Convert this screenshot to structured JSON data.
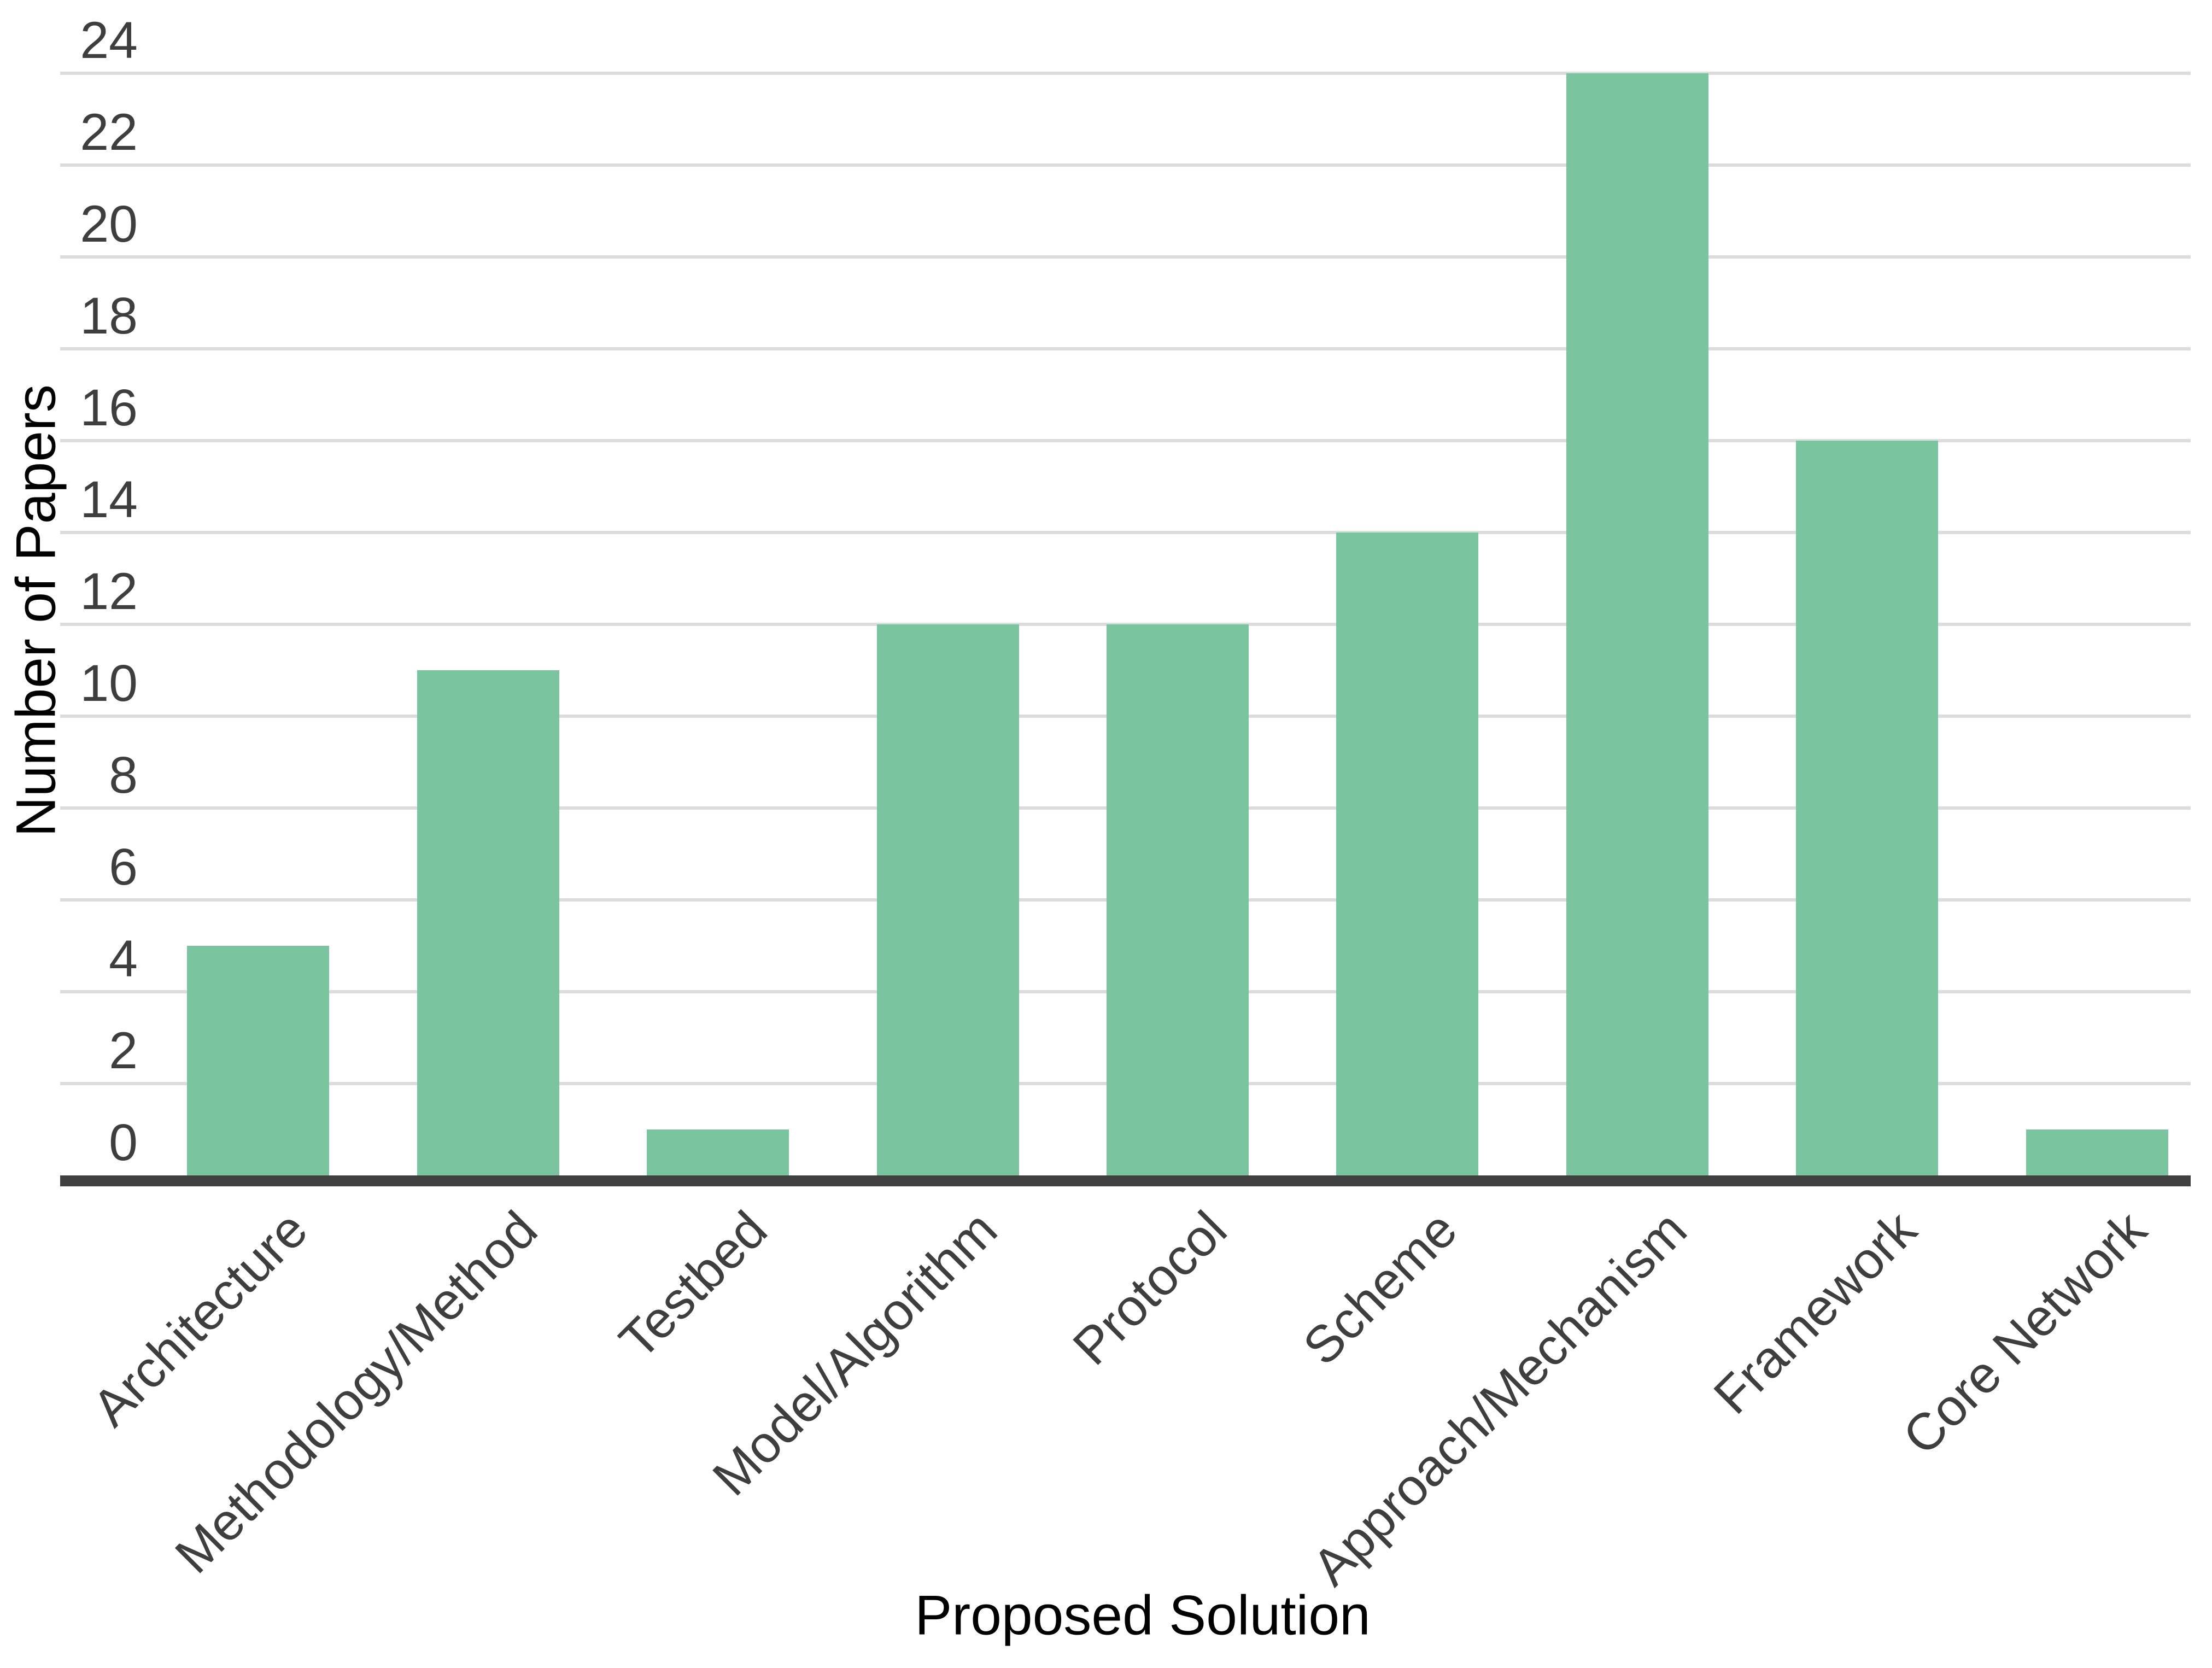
{
  "chart_data": {
    "type": "bar",
    "title": "",
    "categories": [
      "Architecture",
      "Methodology/Method",
      "Testbed",
      "Model/Algorithm",
      "Protocol",
      "Scheme",
      "Approach/Mechanism",
      "Framework",
      "Core Network"
    ],
    "values": [
      5,
      11,
      1,
      12,
      12,
      14,
      24,
      16,
      1
    ],
    "xlabel": "Proposed Solution",
    "ylabel": "Number of Papers",
    "ylim": [
      0,
      24
    ],
    "ytick_step": 2,
    "grid": "horizontal",
    "legend_position": "none",
    "colors": {
      "bar": "#7ac4a0",
      "axis_line": "#3f3f3f",
      "gridline": "#dcdcdc",
      "text": "#3e3e3e"
    }
  }
}
